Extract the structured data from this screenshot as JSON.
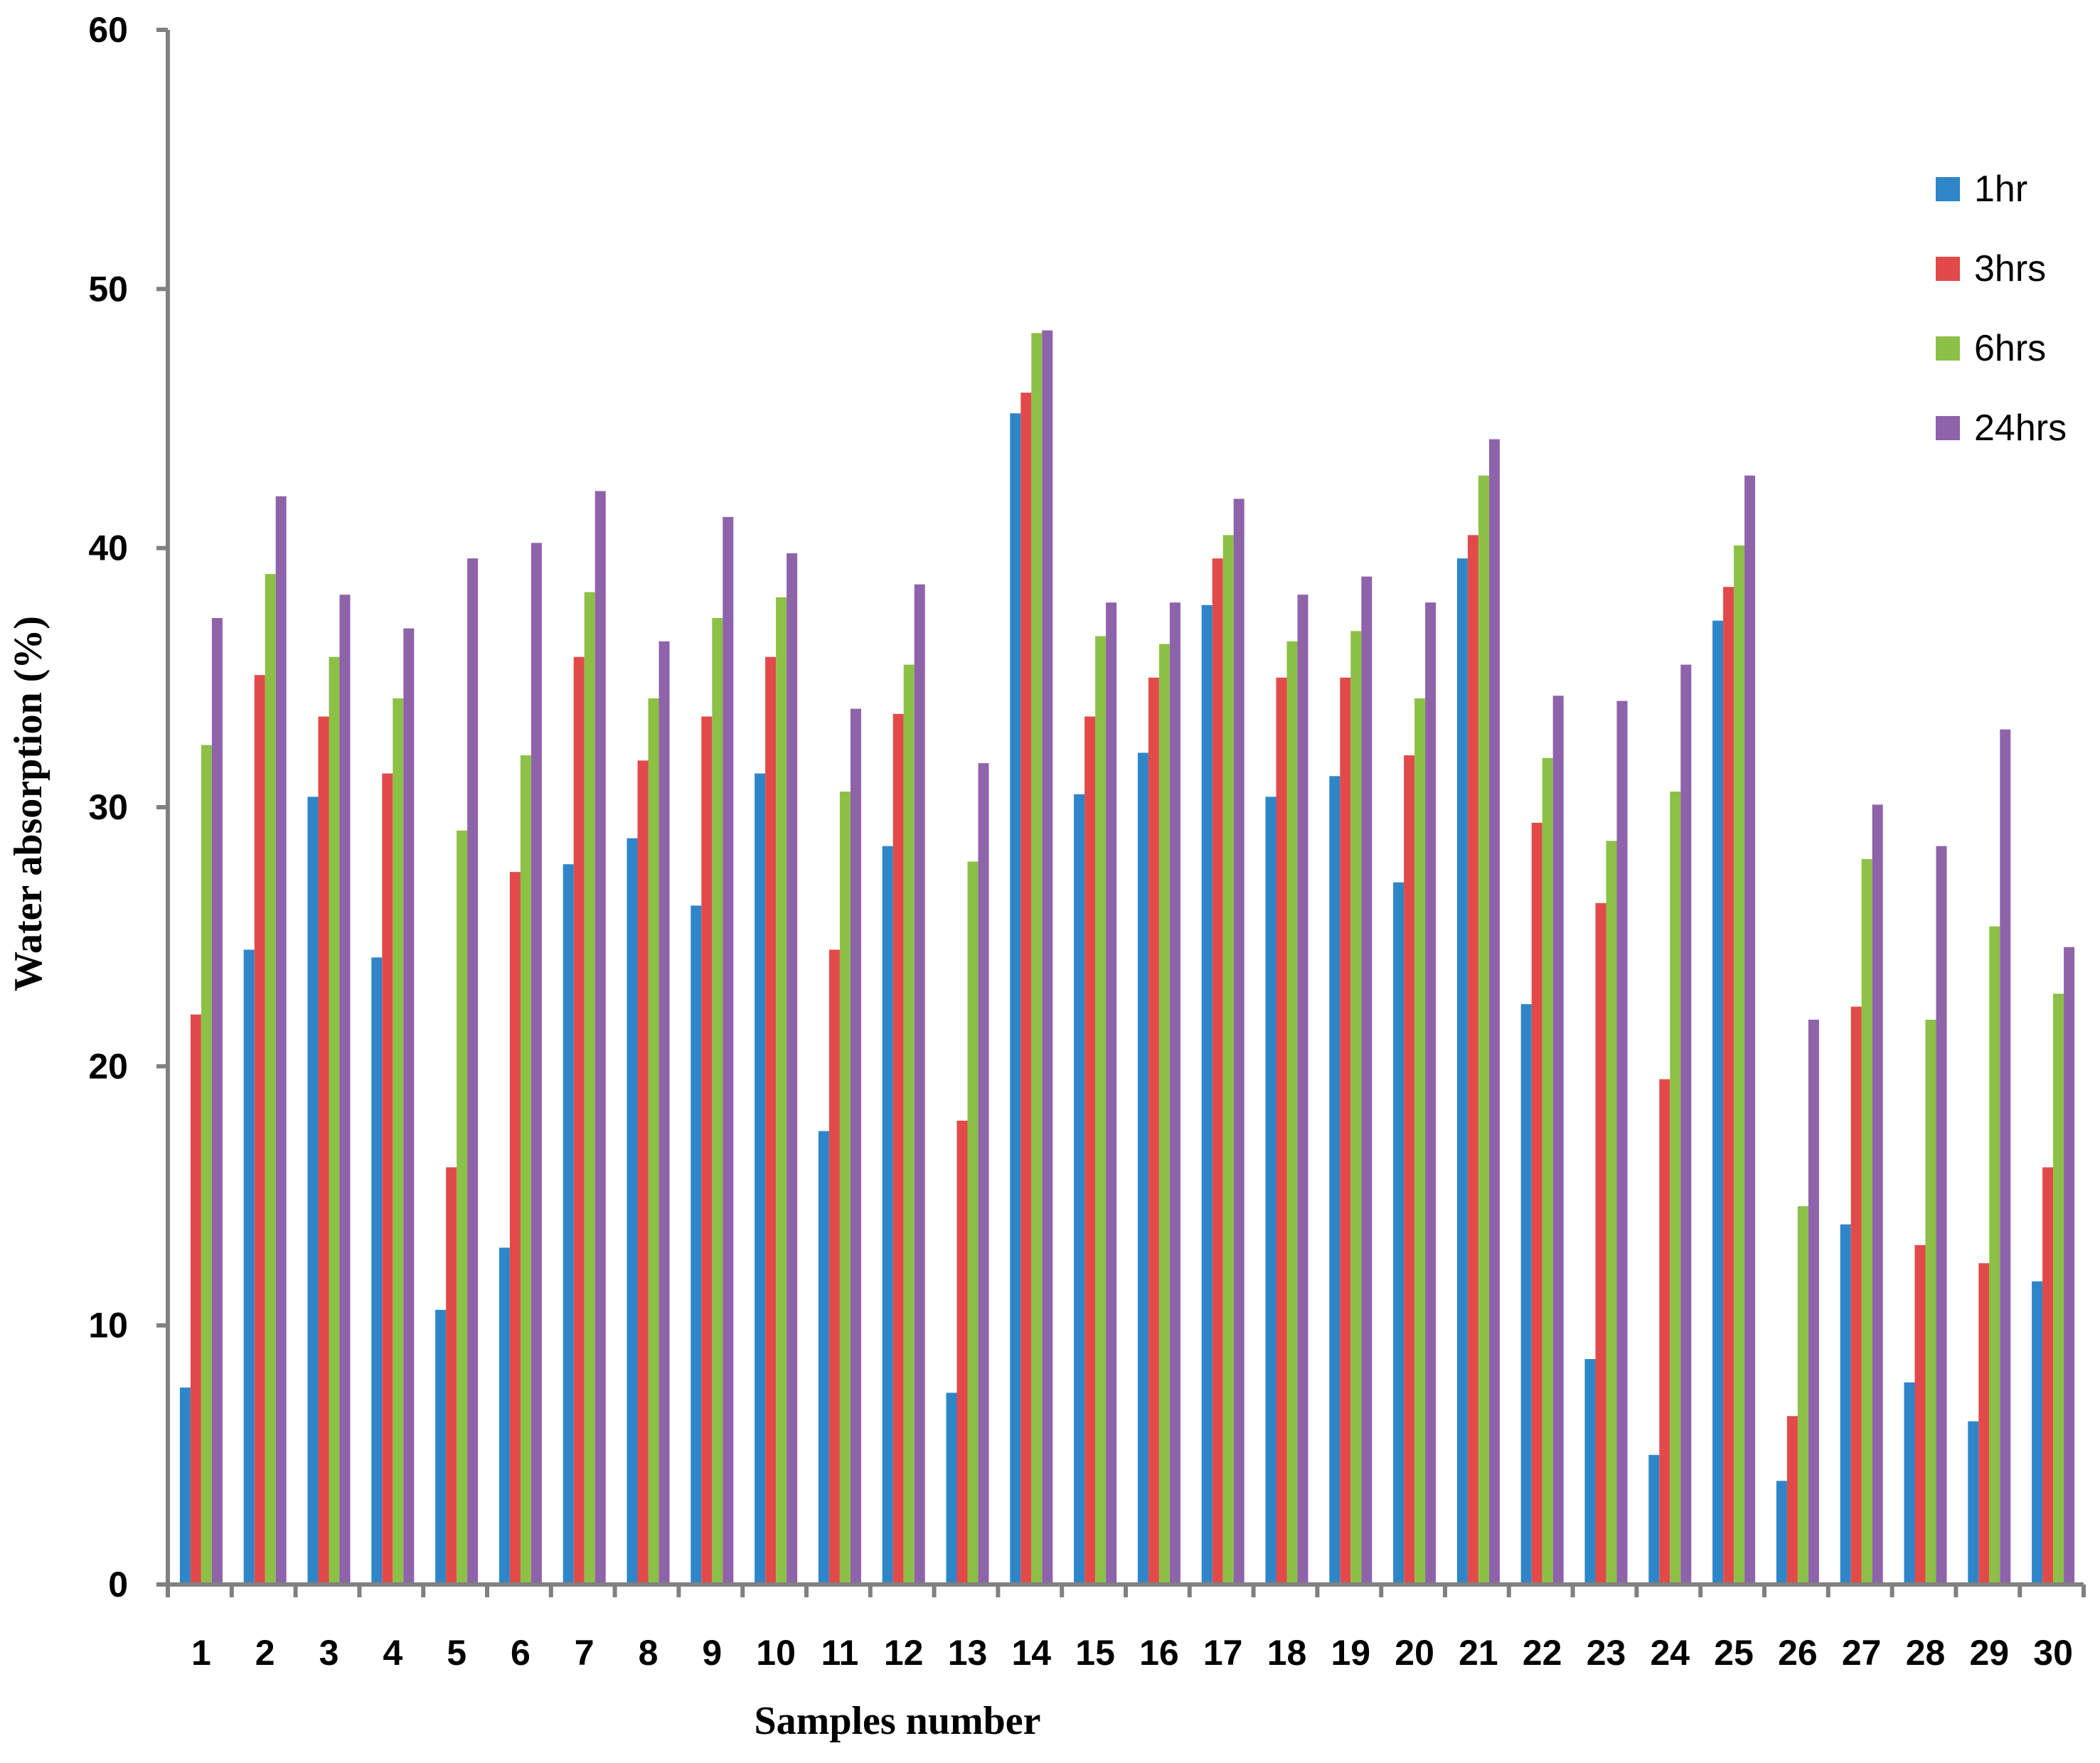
{
  "chart_data": {
    "type": "bar",
    "title": "",
    "xlabel": "Samples number",
    "ylabel": "Water absorption (%)",
    "ylim": [
      0,
      60
    ],
    "yticks": [
      0,
      10,
      20,
      30,
      40,
      50,
      60
    ],
    "grid": false,
    "legend_position": "right",
    "categories": [
      "1",
      "2",
      "3",
      "4",
      "5",
      "6",
      "7",
      "8",
      "9",
      "10",
      "11",
      "12",
      "13",
      "14",
      "15",
      "16",
      "17",
      "18",
      "19",
      "20",
      "21",
      "22",
      "23",
      "24",
      "25",
      "26",
      "27",
      "28",
      "29",
      "30"
    ],
    "series": [
      {
        "name": "1hr",
        "color": "#2E86C9",
        "values": [
          7.6,
          24.5,
          30.4,
          24.2,
          10.6,
          13.0,
          27.8,
          28.8,
          26.2,
          31.3,
          17.5,
          28.5,
          7.4,
          45.2,
          30.5,
          32.1,
          37.8,
          30.4,
          31.2,
          27.1,
          39.6,
          22.4,
          8.7,
          5.0,
          37.2,
          4.0,
          13.9,
          7.8,
          6.3,
          11.7
        ]
      },
      {
        "name": "3hrs",
        "color": "#E24A4A",
        "values": [
          22.0,
          35.1,
          33.5,
          31.3,
          16.1,
          27.5,
          35.8,
          31.8,
          33.5,
          35.8,
          24.5,
          33.6,
          17.9,
          46.0,
          33.5,
          35.0,
          39.6,
          35.0,
          35.0,
          32.0,
          40.5,
          29.4,
          26.3,
          19.5,
          38.5,
          6.5,
          22.3,
          13.1,
          12.4,
          16.1
        ]
      },
      {
        "name": "6hrs",
        "color": "#8DC046",
        "values": [
          32.4,
          39.0,
          35.8,
          34.2,
          29.1,
          32.0,
          38.3,
          34.2,
          37.3,
          38.1,
          30.6,
          35.5,
          27.9,
          48.3,
          36.6,
          36.3,
          40.5,
          36.4,
          36.8,
          34.2,
          42.8,
          31.9,
          28.7,
          30.6,
          40.1,
          14.6,
          28.0,
          21.8,
          25.4,
          22.8
        ]
      },
      {
        "name": "24hrs",
        "color": "#8E63AA",
        "values": [
          37.3,
          42.0,
          38.2,
          36.9,
          39.6,
          40.2,
          42.2,
          36.4,
          41.2,
          39.8,
          33.8,
          38.6,
          31.7,
          48.4,
          37.9,
          37.9,
          41.9,
          38.2,
          38.9,
          37.9,
          44.2,
          34.3,
          34.1,
          35.5,
          42.8,
          21.8,
          30.1,
          28.5,
          33.0,
          24.6
        ]
      }
    ]
  }
}
